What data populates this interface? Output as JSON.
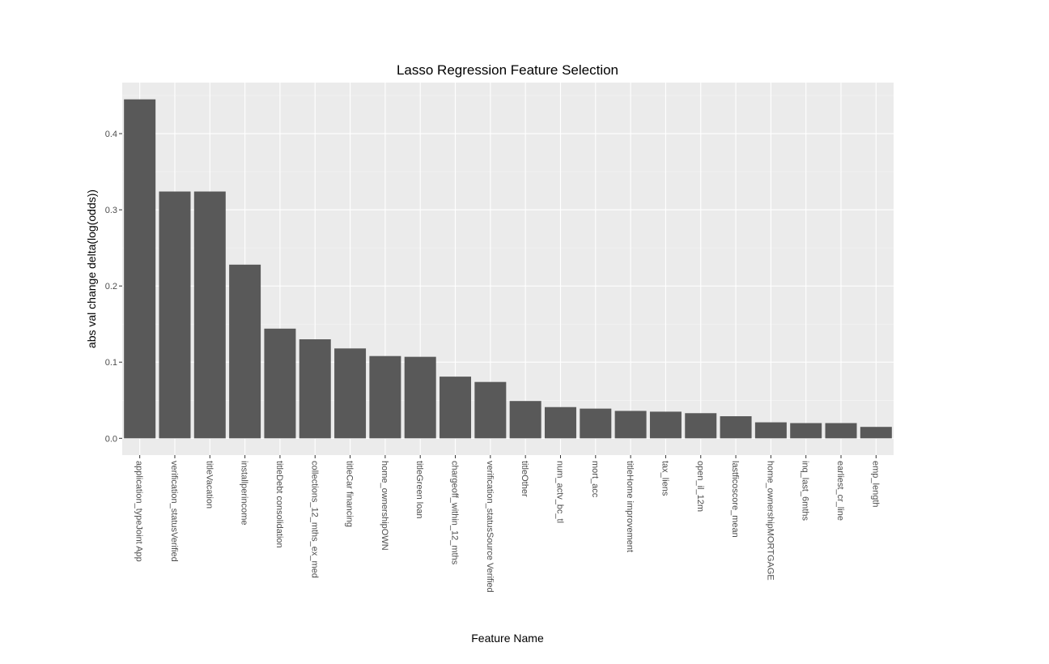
{
  "chart_data": {
    "type": "bar",
    "title": "Lasso Regression Feature Selection",
    "xlabel": "Feature Name",
    "ylabel": "abs val change delta(log(odds))",
    "categories": [
      "application_typeJoint App",
      "verification_statusVerified",
      "titleVacation",
      "installperincome",
      "titleDebt consolidation",
      "collections_12_mths_ex_med",
      "titleCar financing",
      "home_ownershipOWN",
      "titleGreen loan",
      "chargeoff_within_12_mths",
      "verification_statusSource Verified",
      "titleOther",
      "num_actv_bc_tl",
      "mort_acc",
      "titleHome improvement",
      "tax_liens",
      "open_il_12m",
      "lastficoscore_mean",
      "home_ownershipMORTGAGE",
      "inq_last_6mths",
      "earliest_cr_line",
      "emp_length"
    ],
    "values": [
      0.445,
      0.324,
      0.324,
      0.228,
      0.144,
      0.13,
      0.118,
      0.108,
      0.107,
      0.081,
      0.074,
      0.049,
      0.041,
      0.039,
      0.036,
      0.035,
      0.033,
      0.029,
      0.021,
      0.02,
      0.02,
      0.015
    ],
    "yticks": [
      "0.0",
      "0.1",
      "0.2",
      "0.3",
      "0.4"
    ],
    "ylim": [
      -0.022,
      0.467
    ],
    "grid": true,
    "colors": {
      "bar": "#595959",
      "panel": "#ebebeb",
      "grid_major": "#ffffff",
      "grid_minor": "#f5f5f5"
    }
  }
}
